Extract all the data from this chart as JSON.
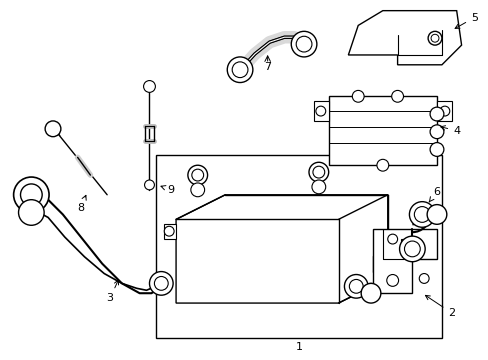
{
  "background_color": "#ffffff",
  "line_color": "#000000",
  "text_color": "#000000",
  "font_size": 8,
  "fig_width": 4.89,
  "fig_height": 3.6,
  "dpi": 100
}
